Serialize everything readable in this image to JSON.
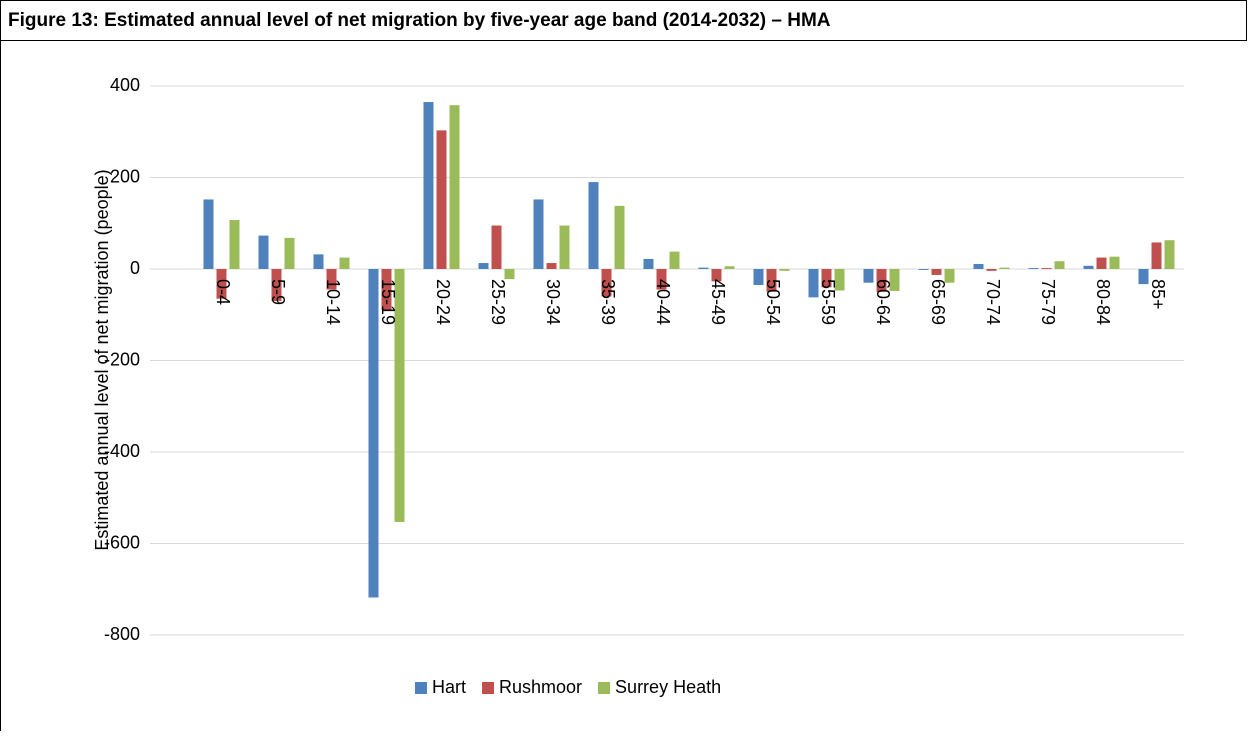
{
  "chart_data": {
    "type": "bar",
    "title": "Figure 13: Estimated annual level of net migration by five-year age band (2014-2032) – HMA",
    "y_label": "Estimated annual level of net migration (people)",
    "categories": [
      "0-4",
      "5-9",
      "10-14",
      "15-19",
      "20-24",
      "25-29",
      "30-34",
      "35-39",
      "40-44",
      "45-49",
      "50-54",
      "55-59",
      "60-64",
      "65-69",
      "70-74",
      "75-79",
      "80-84",
      "85+"
    ],
    "series": [
      {
        "name": "Hart",
        "color": "#4f81bd",
        "values": [
          152,
          73,
          32,
          -718,
          365,
          13,
          152,
          190,
          22,
          3,
          -35,
          -62,
          -30,
          -2,
          11,
          2,
          7,
          -33
        ]
      },
      {
        "name": "Rushmoor",
        "color": "#c0504d",
        "values": [
          -65,
          -70,
          -45,
          -90,
          303,
          95,
          13,
          -60,
          -45,
          -27,
          -50,
          -40,
          -50,
          -13,
          -4,
          2,
          25,
          58
        ]
      },
      {
        "name": "Surrey Heath",
        "color": "#9bbb59",
        "values": [
          107,
          68,
          25,
          -553,
          358,
          -22,
          95,
          138,
          38,
          6,
          -4,
          -47,
          -48,
          -30,
          3,
          17,
          27,
          63
        ]
      }
    ],
    "ylim": [
      -800,
      400
    ],
    "yticks": [
      -800,
      -600,
      -400,
      -200,
      0,
      200,
      400
    ],
    "grid": true,
    "legend": "bottom"
  }
}
